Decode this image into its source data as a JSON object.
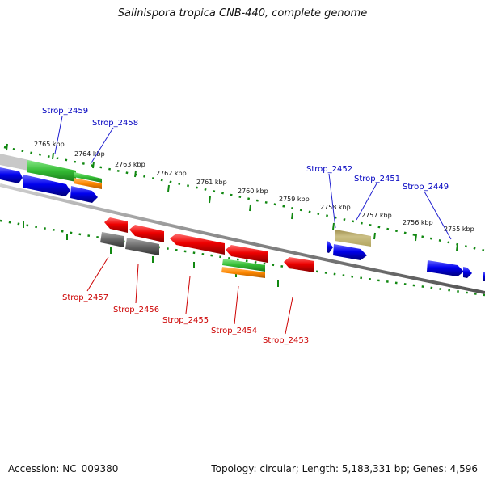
{
  "title": "Salinispora tropica CNB-440, complete genome",
  "footer": {
    "accession": "Accession: NC_009380",
    "topology": "Topology: circular; Length: 5,183,331 bp; Genes: 4,596"
  },
  "ticks": [
    "2765 kbp",
    "2764 kbp",
    "2763 kbp",
    "2762 kbp",
    "2761 kbp",
    "2760 kbp",
    "2759 kbp",
    "2758 kbp",
    "2757 kbp",
    "2756 kbp",
    "2755 kbp"
  ],
  "gene_labels_forward": [
    "Strop_2459",
    "Strop_2458",
    "Strop_2452",
    "Strop_2451",
    "Strop_2449"
  ],
  "gene_labels_reverse": [
    "Strop_2457",
    "Strop_2456",
    "Strop_2455",
    "Strop_2454",
    "Strop_2453"
  ],
  "colors": {
    "forward_gene": "#0000ee",
    "reverse_gene": "#ee0000",
    "forward_label": "#0000c0",
    "reverse_label": "#cc0000",
    "tick": "#118811",
    "backbone": "#888888",
    "rna": "#666666",
    "green_feature": "#33bb33",
    "orange_feature": "#ff8800",
    "olive_feature": "#b3a660"
  }
}
